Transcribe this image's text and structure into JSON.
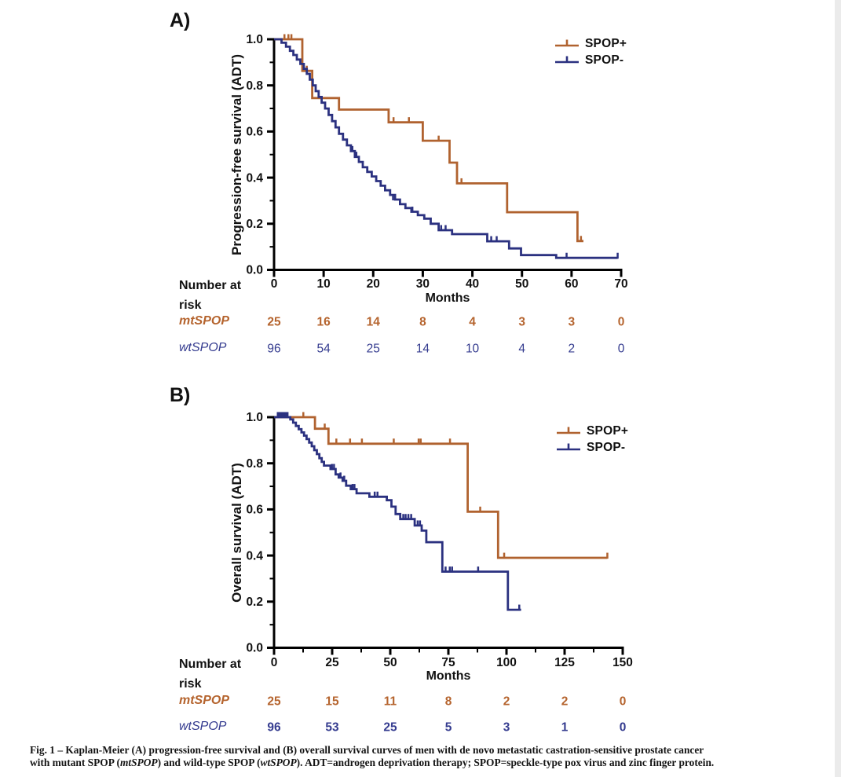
{
  "page": {
    "background": "#ffffff",
    "right_strip_color": "#ebebeb"
  },
  "colors": {
    "spop_plus": "#b0622f",
    "spop_minus": "#2b3180",
    "axis": "#000000",
    "at_risk_plus": "#b5642e",
    "at_risk_minus": "#343b8f"
  },
  "figure": {
    "panel_a_label": "A)",
    "panel_b_label": "B)",
    "caption": {
      "lines": [
        [
          {
            "text": "Fig. 1 – Kaplan-Meier (A) progression-free survival and (B) overall survival curves of men with de novo metastatic castration-sensitive prostate cancer",
            "italic": false
          }
        ],
        [
          {
            "text": "with mutant SPOP (",
            "italic": false
          },
          {
            "text": "mtSPOP",
            "italic": true
          },
          {
            "text": ") and wild-type SPOP (",
            "italic": false
          },
          {
            "text": "wtSPOP",
            "italic": true
          },
          {
            "text": "). ADT=androgen deprivation therapy; SPOP=speckle-type pox virus and zinc finger protein.",
            "italic": false
          }
        ]
      ]
    }
  },
  "chart_data": [
    {
      "type": "line",
      "subtype": "kaplan-meier-step",
      "panel": "A",
      "title": "",
      "ylabel": "Progression-free survival (ADT)",
      "xlabel": "Months",
      "xlim": [
        0,
        70
      ],
      "xticks": [
        0,
        10,
        20,
        30,
        40,
        50,
        60,
        70
      ],
      "x_minor_step": null,
      "ylim": [
        0,
        1
      ],
      "yticks": [
        "1.0",
        "0.8",
        "0.6",
        "0.4",
        "0.2",
        "0.0"
      ],
      "y_minor_step": 0.1,
      "grid": false,
      "legend_position": "top-right",
      "legend": [
        {
          "label": "SPOP+",
          "color": "#b0622f"
        },
        {
          "label": "SPOP-",
          "color": "#2b3180"
        }
      ],
      "series": [
        {
          "name": "SPOP+",
          "color": "#b0622f",
          "steps": [
            [
              0,
              1.0
            ],
            [
              5.7,
              0.863
            ],
            [
              7.7,
              0.745
            ],
            [
              13.1,
              0.695
            ],
            [
              23.1,
              0.64
            ],
            [
              30.0,
              0.56
            ],
            [
              35.4,
              0.465
            ],
            [
              36.9,
              0.375
            ],
            [
              47.0,
              0.25
            ],
            [
              61.2,
              0.125
            ]
          ],
          "end_x": 62.4,
          "censors": [
            [
              2.1,
              1.0
            ],
            [
              2.9,
              1.0
            ],
            [
              3.5,
              1.0
            ],
            [
              6.6,
              0.863
            ],
            [
              24.1,
              0.64
            ],
            [
              27.2,
              0.64
            ],
            [
              33.2,
              0.56
            ],
            [
              37.8,
              0.375
            ],
            [
              61.9,
              0.125
            ]
          ]
        },
        {
          "name": "SPOP-",
          "color": "#2b3180",
          "steps": [
            [
              0,
              1.0
            ],
            [
              1.5,
              0.985
            ],
            [
              2.4,
              0.968
            ],
            [
              3.2,
              0.95
            ],
            [
              3.9,
              0.932
            ],
            [
              4.6,
              0.912
            ],
            [
              5.3,
              0.893
            ],
            [
              6.0,
              0.872
            ],
            [
              6.6,
              0.85
            ],
            [
              7.2,
              0.825
            ],
            [
              7.8,
              0.8
            ],
            [
              8.4,
              0.775
            ],
            [
              9.0,
              0.75
            ],
            [
              9.6,
              0.725
            ],
            [
              10.3,
              0.7
            ],
            [
              11.0,
              0.672
            ],
            [
              11.7,
              0.645
            ],
            [
              12.4,
              0.618
            ],
            [
              13.1,
              0.59
            ],
            [
              13.9,
              0.565
            ],
            [
              14.7,
              0.54
            ],
            [
              15.5,
              0.515
            ],
            [
              16.3,
              0.49
            ],
            [
              17.1,
              0.468
            ],
            [
              17.9,
              0.445
            ],
            [
              18.8,
              0.425
            ],
            [
              19.7,
              0.405
            ],
            [
              20.6,
              0.385
            ],
            [
              21.5,
              0.365
            ],
            [
              22.4,
              0.345
            ],
            [
              23.4,
              0.325
            ],
            [
              24.4,
              0.305
            ],
            [
              25.4,
              0.285
            ],
            [
              26.5,
              0.268
            ],
            [
              27.7,
              0.252
            ],
            [
              29.0,
              0.237
            ],
            [
              30.3,
              0.222
            ],
            [
              31.6,
              0.2
            ],
            [
              33.2,
              0.172
            ],
            [
              35.9,
              0.155
            ],
            [
              43.0,
              0.124
            ],
            [
              47.4,
              0.093
            ],
            [
              49.8,
              0.064
            ],
            [
              56.9,
              0.052
            ]
          ],
          "end_x": 69.3,
          "censors": [
            [
              15.8,
              0.515
            ],
            [
              16.6,
              0.49
            ],
            [
              24.0,
              0.305
            ],
            [
              27.9,
              0.252
            ],
            [
              33.7,
              0.172
            ],
            [
              34.6,
              0.172
            ],
            [
              43.8,
              0.124
            ],
            [
              44.9,
              0.124
            ],
            [
              59.0,
              0.052
            ],
            [
              69.3,
              0.052
            ]
          ]
        }
      ],
      "at_risk": {
        "header_lines": [
          "Number at",
          "risk"
        ],
        "rows": [
          {
            "label": "mtSPOP",
            "color": "#b5642e",
            "bold": true,
            "values": [
              25,
              16,
              14,
              8,
              4,
              3,
              3,
              0
            ]
          },
          {
            "label": "wtSPOP",
            "color": "#343b8f",
            "bold": false,
            "values": [
              96,
              54,
              25,
              14,
              10,
              4,
              2,
              0
            ]
          }
        ]
      }
    },
    {
      "type": "line",
      "subtype": "kaplan-meier-step",
      "panel": "B",
      "title": "",
      "ylabel": "Overall survival (ADT)",
      "xlabel": "Months",
      "xlim": [
        0,
        150
      ],
      "xticks": [
        0,
        25,
        50,
        75,
        100,
        125,
        150
      ],
      "x_minor_step": 12.5,
      "ylim": [
        0,
        1
      ],
      "yticks": [
        "1.0",
        "0.8",
        "0.6",
        "0.4",
        "0.2",
        "0.0"
      ],
      "y_minor_step": 0.1,
      "grid": false,
      "legend_position": "top-right",
      "legend": [
        {
          "label": "SPOP+",
          "color": "#b0622f"
        },
        {
          "label": "SPOP-",
          "color": "#2b3180"
        }
      ],
      "series": [
        {
          "name": "SPOP+",
          "color": "#b0622f",
          "steps": [
            [
              0,
              1.0
            ],
            [
              17.6,
              0.95
            ],
            [
              23.4,
              0.885
            ],
            [
              83.3,
              0.59
            ],
            [
              96.4,
              0.39
            ]
          ],
          "end_x": 143.4,
          "censors": [
            [
              2.2,
              1.0
            ],
            [
              3.0,
              1.0
            ],
            [
              3.8,
              1.0
            ],
            [
              4.6,
              1.0
            ],
            [
              12.6,
              1.0
            ],
            [
              21.8,
              0.95
            ],
            [
              26.8,
              0.885
            ],
            [
              32.7,
              0.885
            ],
            [
              37.8,
              0.885
            ],
            [
              51.5,
              0.885
            ],
            [
              62.2,
              0.885
            ],
            [
              63.1,
              0.885
            ],
            [
              75.7,
              0.885
            ],
            [
              88.7,
              0.59
            ],
            [
              99.0,
              0.39
            ],
            [
              143.4,
              0.39
            ]
          ]
        },
        {
          "name": "SPOP-",
          "color": "#2b3180",
          "steps": [
            [
              0,
              1.0
            ],
            [
              7.0,
              0.99
            ],
            [
              8.2,
              0.976
            ],
            [
              9.4,
              0.962
            ],
            [
              10.6,
              0.948
            ],
            [
              11.8,
              0.934
            ],
            [
              12.9,
              0.92
            ],
            [
              14.0,
              0.905
            ],
            [
              15.1,
              0.89
            ],
            [
              16.2,
              0.874
            ],
            [
              17.3,
              0.857
            ],
            [
              18.4,
              0.84
            ],
            [
              19.5,
              0.822
            ],
            [
              20.5,
              0.806
            ],
            [
              21.5,
              0.79
            ],
            [
              24.3,
              0.775
            ],
            [
              26.5,
              0.752
            ],
            [
              27.8,
              0.738
            ],
            [
              29.5,
              0.724
            ],
            [
              31.0,
              0.703
            ],
            [
              33.0,
              0.688
            ],
            [
              35.5,
              0.67
            ],
            [
              41.0,
              0.655
            ],
            [
              48.5,
              0.64
            ],
            [
              50.5,
              0.612
            ],
            [
              52.3,
              0.58
            ],
            [
              54.3,
              0.558
            ],
            [
              60.5,
              0.53
            ],
            [
              63.5,
              0.508
            ],
            [
              65.5,
              0.458
            ],
            [
              72.4,
              0.33
            ],
            [
              100.6,
              0.165
            ]
          ],
          "end_x": 106.3,
          "censors": [
            [
              1.6,
              1.0
            ],
            [
              2.3,
              1.0
            ],
            [
              3.0,
              1.0
            ],
            [
              3.7,
              1.0
            ],
            [
              4.4,
              1.0
            ],
            [
              5.1,
              1.0
            ],
            [
              5.8,
              1.0
            ],
            [
              24.9,
              0.775
            ],
            [
              25.8,
              0.775
            ],
            [
              28.6,
              0.738
            ],
            [
              30.2,
              0.724
            ],
            [
              33.8,
              0.688
            ],
            [
              34.6,
              0.688
            ],
            [
              43.3,
              0.655
            ],
            [
              44.5,
              0.655
            ],
            [
              55.6,
              0.558
            ],
            [
              56.6,
              0.558
            ],
            [
              57.8,
              0.558
            ],
            [
              59.0,
              0.558
            ],
            [
              61.8,
              0.53
            ],
            [
              62.8,
              0.53
            ],
            [
              73.8,
              0.33
            ],
            [
              75.6,
              0.33
            ],
            [
              76.6,
              0.33
            ],
            [
              87.8,
              0.33
            ],
            [
              105.5,
              0.165
            ]
          ]
        }
      ],
      "at_risk": {
        "header_lines": [
          "Number at",
          "risk"
        ],
        "rows": [
          {
            "label": "mtSPOP",
            "color": "#b5642e",
            "bold": true,
            "values": [
              25,
              15,
              11,
              8,
              2,
              2,
              0
            ]
          },
          {
            "label": "wtSPOP",
            "color": "#343b8f",
            "bold": true,
            "values": [
              96,
              53,
              25,
              5,
              3,
              1,
              0
            ]
          }
        ]
      }
    }
  ]
}
